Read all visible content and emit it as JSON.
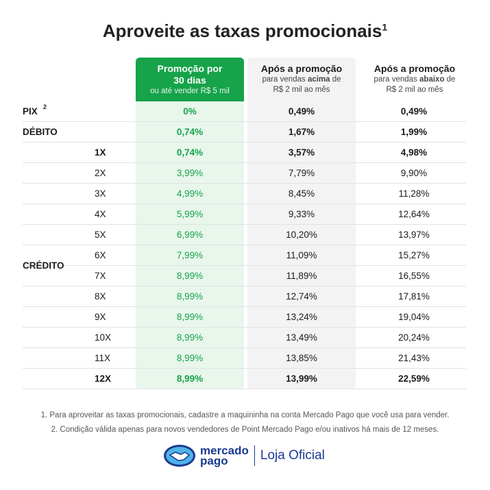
{
  "title": "Aproveite as taxas promocionais",
  "title_sup": "1",
  "headers": [
    {
      "main": "Promoção por 30 dias",
      "sub": "ou até vender R$ 5 mil"
    },
    {
      "main": "Após a promoção",
      "sub_pre": "para vendas ",
      "sub_bold": "acima",
      "sub_post": " de R$ 2 mil ao mês"
    },
    {
      "main": "Após a promoção",
      "sub_pre": "para vendas ",
      "sub_bold": "abaixo",
      "sub_post": " de R$ 2 mil ao mês"
    }
  ],
  "credito_label": "CRÉDITO",
  "rows": [
    {
      "label": "PIX",
      "sup": "2",
      "sub": "",
      "v": [
        "0%",
        "0,49%",
        "0,49%"
      ],
      "bold": true
    },
    {
      "label": "DÉBITO",
      "sub": "",
      "v": [
        "0,74%",
        "1,67%",
        "1,99%"
      ],
      "bold": true
    },
    {
      "label": "",
      "sub": "1X",
      "v": [
        "0,74%",
        "3,57%",
        "4,98%"
      ],
      "bold": true
    },
    {
      "label": "",
      "sub": "2X",
      "v": [
        "3,99%",
        "7,79%",
        "9,90%"
      ]
    },
    {
      "label": "",
      "sub": "3X",
      "v": [
        "4,99%",
        "8,45%",
        "11,28%"
      ]
    },
    {
      "label": "",
      "sub": "4X",
      "v": [
        "5,99%",
        "9,33%",
        "12,64%"
      ]
    },
    {
      "label": "",
      "sub": "5X",
      "v": [
        "6,99%",
        "10,20%",
        "13,97%"
      ]
    },
    {
      "label": "",
      "sub": "6X",
      "v": [
        "7,99%",
        "11,09%",
        "15,27%"
      ]
    },
    {
      "label": "",
      "sub": "7X",
      "v": [
        "8,99%",
        "11,89%",
        "16,55%"
      ]
    },
    {
      "label": "",
      "sub": "8X",
      "v": [
        "8,99%",
        "12,74%",
        "17,81%"
      ]
    },
    {
      "label": "",
      "sub": "9X",
      "v": [
        "8,99%",
        "13,24%",
        "19,04%"
      ]
    },
    {
      "label": "",
      "sub": "10X",
      "v": [
        "8,99%",
        "13,49%",
        "20,24%"
      ]
    },
    {
      "label": "",
      "sub": "11X",
      "v": [
        "8,99%",
        "13,85%",
        "21,43%"
      ]
    },
    {
      "label": "",
      "sub": "12X",
      "v": [
        "8,99%",
        "13,99%",
        "22,59%"
      ],
      "bold": true
    }
  ],
  "notes": [
    "1. Para aproveitar as taxas promocionais, cadastre a maquininha na conta Mercado Pago que você usa para vender.",
    "2. Condição válida apenas para novos vendedores de Point Mercado Pago e/ou inativos há mais de 12 meses."
  ],
  "logo": {
    "line1": "mercado",
    "line2": "pago",
    "store": "Loja Oficial"
  },
  "colors": {
    "green": "#16a34a",
    "brand": "#1a3a8f"
  }
}
